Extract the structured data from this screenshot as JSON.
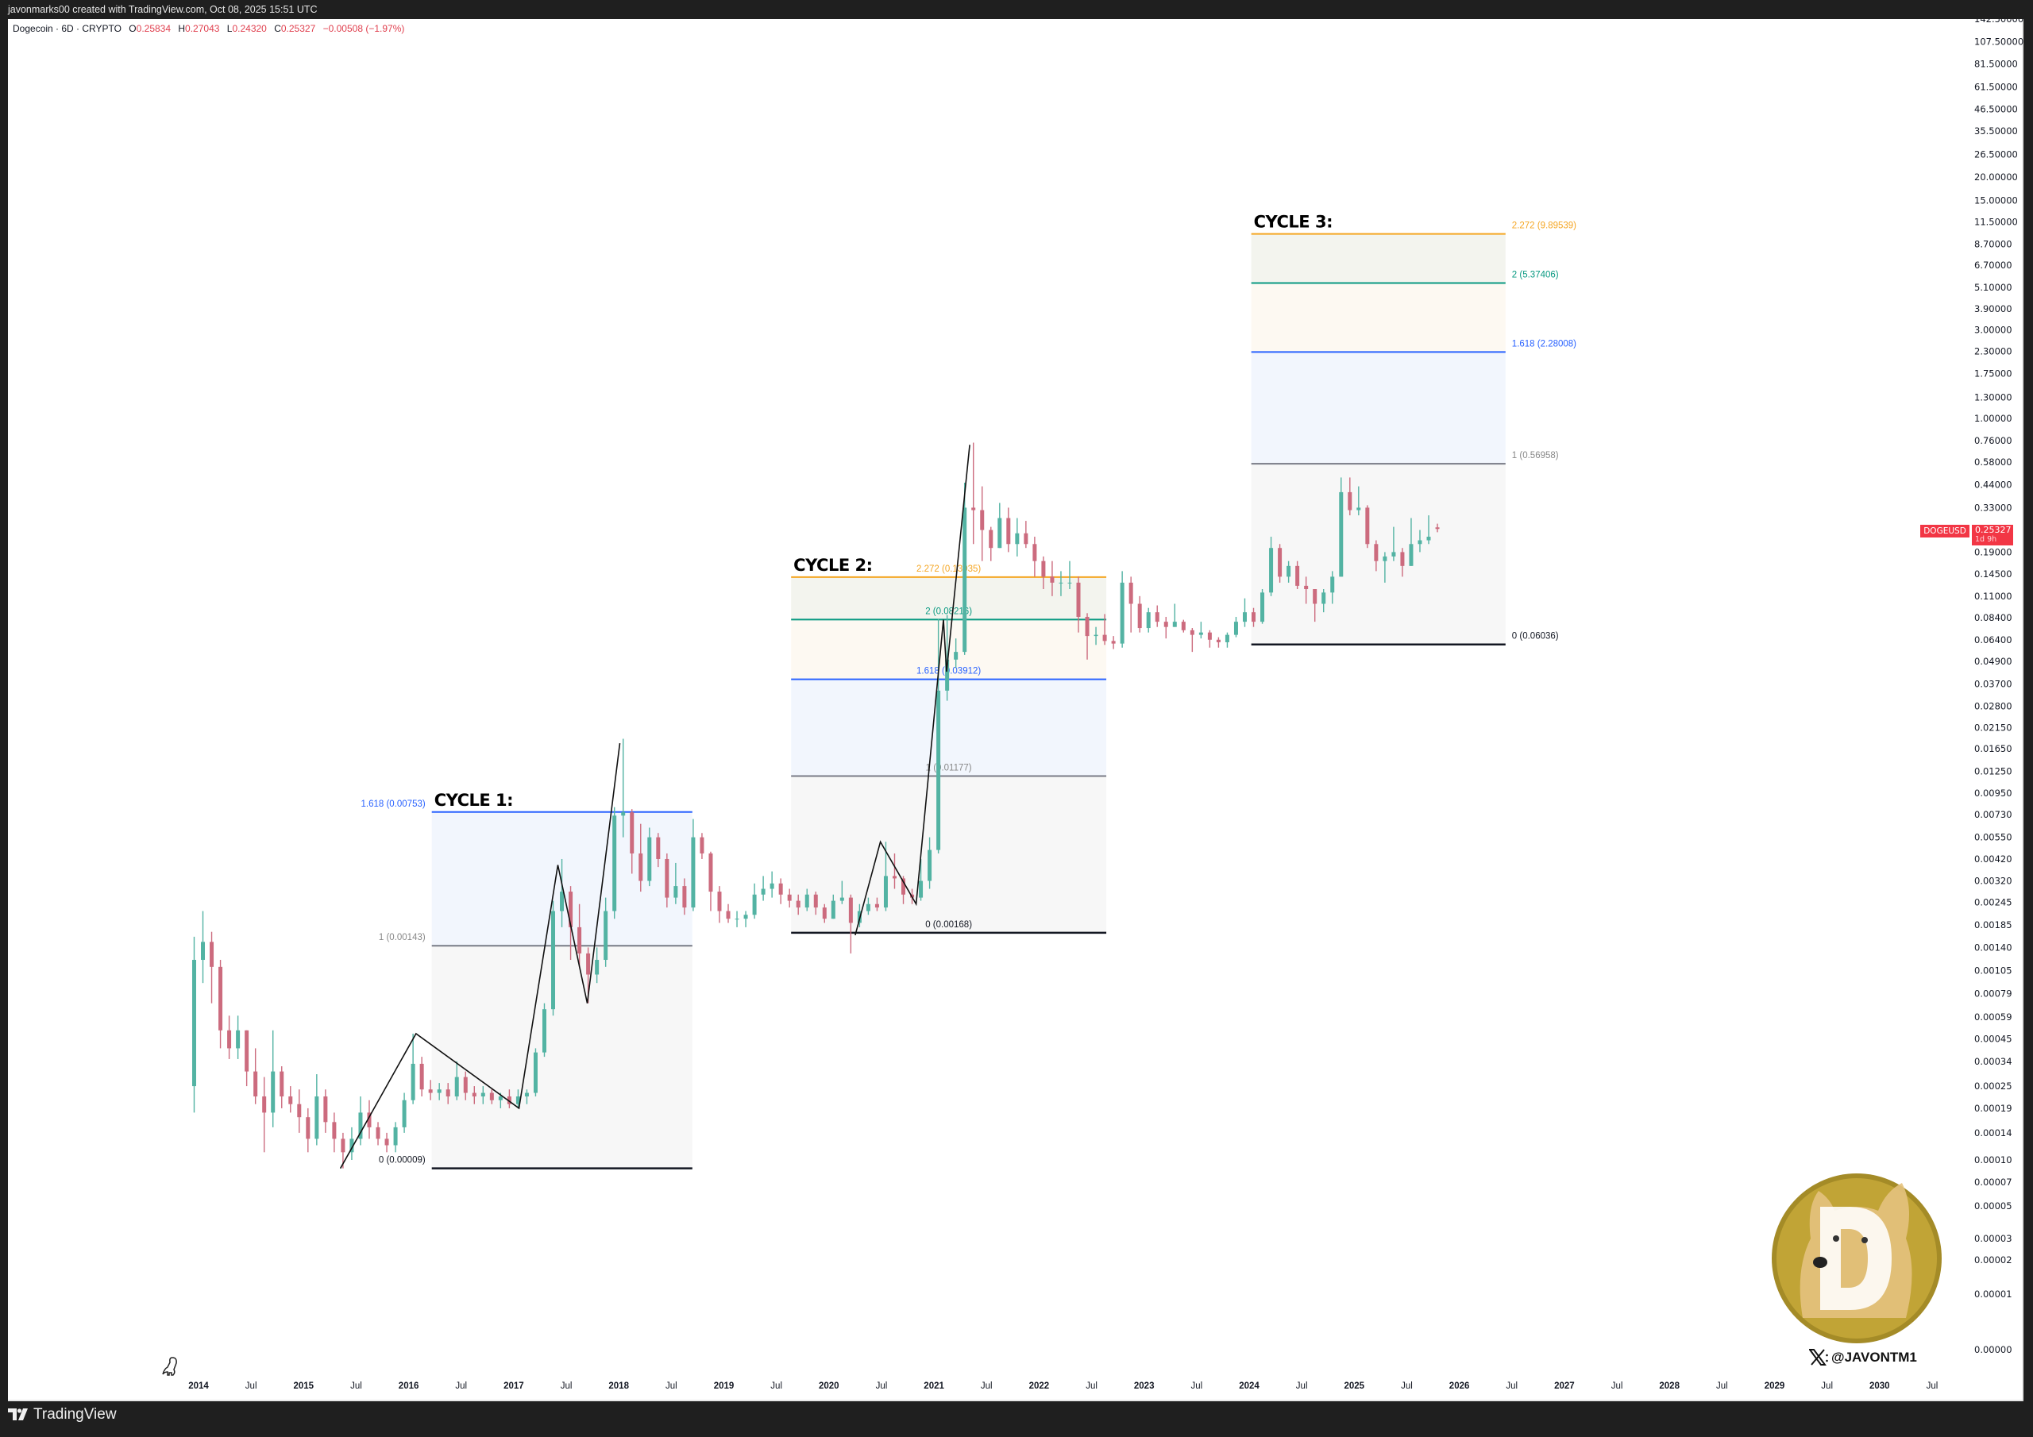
{
  "header": {
    "credit": "javonmarks00 created with TradingView.com, Oct 08, 2025 15:51 UTC",
    "symbol_line": "Dogecoin · 6D · CRYPTO",
    "ohlc": {
      "o_label": "O",
      "o": "0.25834",
      "h_label": "H",
      "h": "0.27043",
      "l_label": "L",
      "l": "0.24320",
      "c_label": "C",
      "c": "0.25327",
      "change": "−0.00508 (−1.97%)"
    }
  },
  "price_tag": {
    "symbol": "DOGEUSD",
    "price": "0.25327",
    "countdown": "1d 9h",
    "color": "#f23645"
  },
  "footer": {
    "brand": "TradingView"
  },
  "watermark": {
    "handle": "@JAVONTM1",
    "logo": "dogecoin-coin-logo",
    "logo_letter": "D"
  },
  "colors": {
    "up": "#53b3a3",
    "down": "#cc6b7e",
    "fib_0": "#131722",
    "fib_1": "#787b86",
    "fib_1618": "#2962ff",
    "fib_2": "#089981",
    "fib_2272": "#f5a623"
  },
  "chart_data": {
    "type": "candlestick",
    "title": "",
    "y_scale": "log",
    "ylim": [
      1e-05,
      142.5
    ],
    "xlim": [
      "2013-12",
      "2030-12"
    ],
    "grid": false,
    "price_ticks": [
      "142.50000",
      "107.50000",
      "81.50000",
      "61.50000",
      "46.50000",
      "35.50000",
      "26.50000",
      "20.00000",
      "15.00000",
      "11.50000",
      "8.70000",
      "6.70000",
      "5.10000",
      "3.90000",
      "3.00000",
      "2.30000",
      "1.75000",
      "1.30000",
      "1.00000",
      "0.76000",
      "0.58000",
      "0.44000",
      "0.33000",
      "0.19000",
      "0.14500",
      "0.11000",
      "0.08400",
      "0.06400",
      "0.04900",
      "0.03700",
      "0.02800",
      "0.02150",
      "0.01650",
      "0.01250",
      "0.00950",
      "0.00730",
      "0.00550",
      "0.00420",
      "0.00320",
      "0.00245",
      "0.00185",
      "0.00140",
      "0.00105",
      "0.00079",
      "0.00059",
      "0.00045",
      "0.00034",
      "0.00025",
      "0.00019",
      "0.00014",
      "0.00010",
      "0.00007",
      "0.00005",
      "0.00003",
      "0.00002",
      "0.00001",
      "0.00000"
    ],
    "time_ticks": [
      "2014",
      "Jul",
      "2015",
      "Jul",
      "2016",
      "Jul",
      "2017",
      "Jul",
      "2018",
      "Jul",
      "2019",
      "Jul",
      "2020",
      "Jul",
      "2021",
      "Jul",
      "2022",
      "Jul",
      "2023",
      "Jul",
      "2024",
      "Jul",
      "2025",
      "Jul",
      "2026",
      "Jul",
      "2027",
      "Jul",
      "2028",
      "Jul",
      "2029",
      "Jul",
      "2030",
      "Jul"
    ],
    "ohlc_columns": [
      "month",
      "open",
      "high",
      "low",
      "close"
    ],
    "ohlc": [
      [
        "2013-12",
        0.00025,
        0.0016,
        0.00018,
        0.0012
      ],
      [
        "2014-01",
        0.0012,
        0.0022,
        0.0009,
        0.0015
      ],
      [
        "2014-02",
        0.0015,
        0.0017,
        0.0007,
        0.0011
      ],
      [
        "2014-03",
        0.0011,
        0.0012,
        0.0004,
        0.0005
      ],
      [
        "2014-04",
        0.0005,
        0.0006,
        0.00035,
        0.0004
      ],
      [
        "2014-05",
        0.0004,
        0.0006,
        0.00035,
        0.0005
      ],
      [
        "2014-06",
        0.0005,
        0.0005,
        0.00025,
        0.0003
      ],
      [
        "2014-07",
        0.0003,
        0.0004,
        0.0002,
        0.00022
      ],
      [
        "2014-08",
        0.00022,
        0.00028,
        0.00011,
        0.00018
      ],
      [
        "2014-09",
        0.00018,
        0.0005,
        0.00015,
        0.0003
      ],
      [
        "2014-10",
        0.0003,
        0.00032,
        0.00019,
        0.00022
      ],
      [
        "2014-11",
        0.00022,
        0.00025,
        0.00018,
        0.0002
      ],
      [
        "2014-12",
        0.0002,
        0.00024,
        0.00014,
        0.00017
      ],
      [
        "2015-01",
        0.00017,
        0.00019,
        0.00011,
        0.00013
      ],
      [
        "2015-02",
        0.00013,
        0.00029,
        0.00012,
        0.00022
      ],
      [
        "2015-03",
        0.00022,
        0.00024,
        0.00014,
        0.00016
      ],
      [
        "2015-04",
        0.00016,
        0.00018,
        0.00011,
        0.00013
      ],
      [
        "2015-05",
        0.00013,
        0.00014,
        9e-05,
        0.00011
      ],
      [
        "2015-06",
        0.00011,
        0.00015,
        0.0001,
        0.00013
      ],
      [
        "2015-07",
        0.00013,
        0.00022,
        0.00012,
        0.00018
      ],
      [
        "2015-08",
        0.00018,
        0.00021,
        0.00013,
        0.00015
      ],
      [
        "2015-09",
        0.00015,
        0.00016,
        0.00012,
        0.00013
      ],
      [
        "2015-10",
        0.00013,
        0.00014,
        0.00011,
        0.00012
      ],
      [
        "2015-11",
        0.00012,
        0.00016,
        0.00011,
        0.00015
      ],
      [
        "2015-12",
        0.00015,
        0.00023,
        0.00014,
        0.00021
      ],
      [
        "2016-01",
        0.00021,
        0.00048,
        0.0002,
        0.00033
      ],
      [
        "2016-02",
        0.00033,
        0.00036,
        0.00022,
        0.00024
      ],
      [
        "2016-03",
        0.00024,
        0.00027,
        0.00021,
        0.00023
      ],
      [
        "2016-04",
        0.00023,
        0.00026,
        0.00021,
        0.00024
      ],
      [
        "2016-05",
        0.00024,
        0.00026,
        0.0002,
        0.00022
      ],
      [
        "2016-06",
        0.00022,
        0.00034,
        0.00021,
        0.00028
      ],
      [
        "2016-07",
        0.00028,
        0.0003,
        0.00021,
        0.00023
      ],
      [
        "2016-08",
        0.00023,
        0.00025,
        0.0002,
        0.00022
      ],
      [
        "2016-09",
        0.00022,
        0.00025,
        0.0002,
        0.00023
      ],
      [
        "2016-10",
        0.00023,
        0.00024,
        0.0002,
        0.00021
      ],
      [
        "2016-11",
        0.00021,
        0.00023,
        0.00019,
        0.00022
      ],
      [
        "2016-12",
        0.00022,
        0.00024,
        0.00019,
        0.0002
      ],
      [
        "2017-01",
        0.0002,
        0.00024,
        0.00019,
        0.00022
      ],
      [
        "2017-02",
        0.00022,
        0.00024,
        0.0002,
        0.00023
      ],
      [
        "2017-03",
        0.00023,
        0.0004,
        0.00022,
        0.00038
      ],
      [
        "2017-04",
        0.00038,
        0.0007,
        0.00036,
        0.00065
      ],
      [
        "2017-05",
        0.00065,
        0.0025,
        0.0006,
        0.0022
      ],
      [
        "2017-06",
        0.0022,
        0.0042,
        0.0018,
        0.0028
      ],
      [
        "2017-07",
        0.0028,
        0.003,
        0.0012,
        0.0018
      ],
      [
        "2017-08",
        0.0018,
        0.0024,
        0.0011,
        0.0013
      ],
      [
        "2017-09",
        0.0013,
        0.0014,
        0.0007,
        0.001
      ],
      [
        "2017-10",
        0.001,
        0.0014,
        0.0009,
        0.0012
      ],
      [
        "2017-11",
        0.0012,
        0.0026,
        0.0011,
        0.0022
      ],
      [
        "2017-12",
        0.0022,
        0.008,
        0.002,
        0.0072
      ],
      [
        "2018-01",
        0.0072,
        0.0187,
        0.0055,
        0.0075
      ],
      [
        "2018-02",
        0.0075,
        0.0078,
        0.0035,
        0.0045
      ],
      [
        "2018-03",
        0.0045,
        0.0065,
        0.0028,
        0.0032
      ],
      [
        "2018-04",
        0.0032,
        0.0062,
        0.003,
        0.0055
      ],
      [
        "2018-05",
        0.0055,
        0.0058,
        0.0038,
        0.0042
      ],
      [
        "2018-06",
        0.0042,
        0.0045,
        0.0023,
        0.0026
      ],
      [
        "2018-07",
        0.0026,
        0.004,
        0.0024,
        0.003
      ],
      [
        "2018-08",
        0.003,
        0.0033,
        0.0021,
        0.0023
      ],
      [
        "2018-09",
        0.0023,
        0.0069,
        0.0022,
        0.0055
      ],
      [
        "2018-10",
        0.0055,
        0.0058,
        0.0042,
        0.0045
      ],
      [
        "2018-11",
        0.0045,
        0.0046,
        0.0022,
        0.0028
      ],
      [
        "2018-12",
        0.0028,
        0.003,
        0.0019,
        0.0022
      ],
      [
        "2019-01",
        0.0022,
        0.0024,
        0.0019,
        0.002
      ],
      [
        "2019-02",
        0.002,
        0.0022,
        0.0018,
        0.002
      ],
      [
        "2019-03",
        0.002,
        0.0022,
        0.0018,
        0.0021
      ],
      [
        "2019-04",
        0.0021,
        0.0031,
        0.002,
        0.0027
      ],
      [
        "2019-05",
        0.0027,
        0.0034,
        0.0025,
        0.0029
      ],
      [
        "2019-06",
        0.0029,
        0.0036,
        0.0026,
        0.0031
      ],
      [
        "2019-07",
        0.0031,
        0.0033,
        0.0024,
        0.0027
      ],
      [
        "2019-08",
        0.0027,
        0.0029,
        0.0023,
        0.0025
      ],
      [
        "2019-09",
        0.0025,
        0.0027,
        0.0021,
        0.0023
      ],
      [
        "2019-10",
        0.0023,
        0.0029,
        0.0022,
        0.0027
      ],
      [
        "2019-11",
        0.0027,
        0.0028,
        0.0021,
        0.0023
      ],
      [
        "2019-12",
        0.0023,
        0.0024,
        0.0019,
        0.002
      ],
      [
        "2020-01",
        0.002,
        0.0027,
        0.002,
        0.0025
      ],
      [
        "2020-02",
        0.0025,
        0.0032,
        0.0024,
        0.0026
      ],
      [
        "2020-03",
        0.0026,
        0.0027,
        0.0013,
        0.0019
      ],
      [
        "2020-04",
        0.0019,
        0.0024,
        0.0018,
        0.0022
      ],
      [
        "2020-05",
        0.0022,
        0.0026,
        0.0021,
        0.0024
      ],
      [
        "2020-06",
        0.0024,
        0.0026,
        0.0022,
        0.0023
      ],
      [
        "2020-07",
        0.0023,
        0.0052,
        0.0022,
        0.0034
      ],
      [
        "2020-08",
        0.0034,
        0.0045,
        0.0029,
        0.0033
      ],
      [
        "2020-09",
        0.0033,
        0.0034,
        0.0024,
        0.0027
      ],
      [
        "2020-10",
        0.0027,
        0.0029,
        0.0024,
        0.0026
      ],
      [
        "2020-11",
        0.0026,
        0.0042,
        0.0025,
        0.0032
      ],
      [
        "2020-12",
        0.0032,
        0.0055,
        0.0029,
        0.0047
      ],
      [
        "2021-01",
        0.0047,
        0.083,
        0.0045,
        0.034
      ],
      [
        "2021-02",
        0.034,
        0.087,
        0.03,
        0.05
      ],
      [
        "2021-03",
        0.05,
        0.065,
        0.045,
        0.055
      ],
      [
        "2021-04",
        0.055,
        0.45,
        0.053,
        0.33
      ],
      [
        "2021-05",
        0.33,
        0.74,
        0.21,
        0.32
      ],
      [
        "2021-06",
        0.32,
        0.43,
        0.17,
        0.25
      ],
      [
        "2021-07",
        0.25,
        0.26,
        0.17,
        0.2
      ],
      [
        "2021-08",
        0.2,
        0.35,
        0.2,
        0.29
      ],
      [
        "2021-09",
        0.29,
        0.33,
        0.19,
        0.21
      ],
      [
        "2021-10",
        0.21,
        0.29,
        0.18,
        0.24
      ],
      [
        "2021-11",
        0.24,
        0.28,
        0.2,
        0.21
      ],
      [
        "2021-12",
        0.21,
        0.23,
        0.14,
        0.17
      ],
      [
        "2022-01",
        0.17,
        0.18,
        0.12,
        0.14
      ],
      [
        "2022-02",
        0.14,
        0.17,
        0.11,
        0.13
      ],
      [
        "2022-03",
        0.13,
        0.15,
        0.11,
        0.13
      ],
      [
        "2022-04",
        0.13,
        0.17,
        0.12,
        0.13
      ],
      [
        "2022-05",
        0.13,
        0.14,
        0.07,
        0.085
      ],
      [
        "2022-06",
        0.085,
        0.089,
        0.05,
        0.067
      ],
      [
        "2022-07",
        0.067,
        0.075,
        0.06,
        0.068
      ],
      [
        "2022-08",
        0.068,
        0.088,
        0.06,
        0.063
      ],
      [
        "2022-09",
        0.063,
        0.067,
        0.057,
        0.061
      ],
      [
        "2022-10",
        0.061,
        0.15,
        0.058,
        0.13
      ],
      [
        "2022-11",
        0.13,
        0.14,
        0.07,
        0.1
      ],
      [
        "2022-12",
        0.1,
        0.11,
        0.07,
        0.074
      ],
      [
        "2023-01",
        0.074,
        0.095,
        0.07,
        0.09
      ],
      [
        "2023-02",
        0.09,
        0.098,
        0.075,
        0.08
      ],
      [
        "2023-03",
        0.08,
        0.085,
        0.065,
        0.075
      ],
      [
        "2023-04",
        0.075,
        0.1,
        0.075,
        0.08
      ],
      [
        "2023-05",
        0.08,
        0.082,
        0.07,
        0.072
      ],
      [
        "2023-06",
        0.072,
        0.074,
        0.055,
        0.068
      ],
      [
        "2023-07",
        0.068,
        0.08,
        0.065,
        0.07
      ],
      [
        "2023-08",
        0.07,
        0.072,
        0.058,
        0.064
      ],
      [
        "2023-09",
        0.064,
        0.066,
        0.058,
        0.062
      ],
      [
        "2023-10",
        0.062,
        0.07,
        0.058,
        0.068
      ],
      [
        "2023-11",
        0.068,
        0.085,
        0.066,
        0.08
      ],
      [
        "2023-12",
        0.08,
        0.107,
        0.075,
        0.09
      ],
      [
        "2024-01",
        0.09,
        0.095,
        0.075,
        0.08
      ],
      [
        "2024-02",
        0.08,
        0.12,
        0.078,
        0.115
      ],
      [
        "2024-03",
        0.115,
        0.23,
        0.11,
        0.2
      ],
      [
        "2024-04",
        0.2,
        0.21,
        0.13,
        0.14
      ],
      [
        "2024-05",
        0.14,
        0.17,
        0.13,
        0.16
      ],
      [
        "2024-06",
        0.16,
        0.17,
        0.12,
        0.125
      ],
      [
        "2024-07",
        0.125,
        0.14,
        0.1,
        0.12
      ],
      [
        "2024-08",
        0.12,
        0.12,
        0.08,
        0.1
      ],
      [
        "2024-09",
        0.1,
        0.12,
        0.09,
        0.115
      ],
      [
        "2024-10",
        0.115,
        0.15,
        0.1,
        0.14
      ],
      [
        "2024-11",
        0.14,
        0.48,
        0.14,
        0.4
      ],
      [
        "2024-12",
        0.4,
        0.48,
        0.3,
        0.32
      ],
      [
        "2025-01",
        0.32,
        0.43,
        0.3,
        0.33
      ],
      [
        "2025-02",
        0.33,
        0.34,
        0.2,
        0.21
      ],
      [
        "2025-03",
        0.21,
        0.22,
        0.15,
        0.17
      ],
      [
        "2025-04",
        0.17,
        0.19,
        0.13,
        0.18
      ],
      [
        "2025-05",
        0.18,
        0.26,
        0.17,
        0.19
      ],
      [
        "2025-06",
        0.19,
        0.2,
        0.14,
        0.16
      ],
      [
        "2025-07",
        0.16,
        0.29,
        0.16,
        0.21
      ],
      [
        "2025-08",
        0.21,
        0.25,
        0.19,
        0.22
      ],
      [
        "2025-09",
        0.22,
        0.3,
        0.21,
        0.23
      ],
      [
        "2025-10",
        0.25834,
        0.27043,
        0.2432,
        0.25327
      ]
    ],
    "fib_extensions": [
      {
        "title": "CYCLE 1:",
        "start": 2016.22,
        "end": 2018.7,
        "label_align": "left-outside",
        "levels": [
          {
            "label": "0 (0.00009)",
            "price": 9e-05,
            "key": "fib_0"
          },
          {
            "label": "1 (0.00143)",
            "price": 0.00143,
            "key": "fib_1"
          },
          {
            "label": "1.618 (0.00753)",
            "price": 0.00753,
            "key": "fib_1618"
          }
        ]
      },
      {
        "title": "CYCLE 2:",
        "start": 2019.64,
        "end": 2022.64,
        "label_align": "center",
        "levels": [
          {
            "label": "0 (0.00168)",
            "price": 0.00168,
            "key": "fib_0"
          },
          {
            "label": "1 (0.01177)",
            "price": 0.01177,
            "key": "fib_1"
          },
          {
            "label": "1.618 (0.03912)",
            "price": 0.03912,
            "key": "fib_1618"
          },
          {
            "label": "2 (0.08216)",
            "price": 0.08216,
            "key": "fib_2"
          },
          {
            "label": "2.272 (0.13935)",
            "price": 0.13935,
            "key": "fib_2272"
          }
        ]
      },
      {
        "title": "CYCLE 3:",
        "start": 2024.02,
        "end": 2026.44,
        "label_align": "right-outside",
        "levels": [
          {
            "label": "0 (0.06036)",
            "price": 0.06036,
            "key": "fib_0"
          },
          {
            "label": "1 (0.56958)",
            "price": 0.56958,
            "key": "fib_1"
          },
          {
            "label": "1.618 (2.28008)",
            "price": 2.28008,
            "key": "fib_1618"
          },
          {
            "label": "2 (5.37406)",
            "price": 5.37406,
            "key": "fib_2"
          },
          {
            "label": "2.272 (9.89539)",
            "price": 9.89539,
            "key": "fib_2272"
          }
        ]
      }
    ],
    "zigzags": [
      [
        [
          2015.35,
          9e-05
        ],
        [
          2016.07,
          0.00048
        ],
        [
          2017.05,
          0.00019
        ],
        [
          2017.42,
          0.0039
        ],
        [
          2017.7,
          0.0007
        ],
        [
          2018.01,
          0.0177
        ]
      ],
      [
        [
          2020.25,
          0.00163
        ],
        [
          2020.49,
          0.0052
        ],
        [
          2020.83,
          0.0024
        ],
        [
          2021.09,
          0.082
        ],
        [
          2021.12,
          0.043
        ],
        [
          2021.34,
          0.72
        ]
      ]
    ]
  }
}
